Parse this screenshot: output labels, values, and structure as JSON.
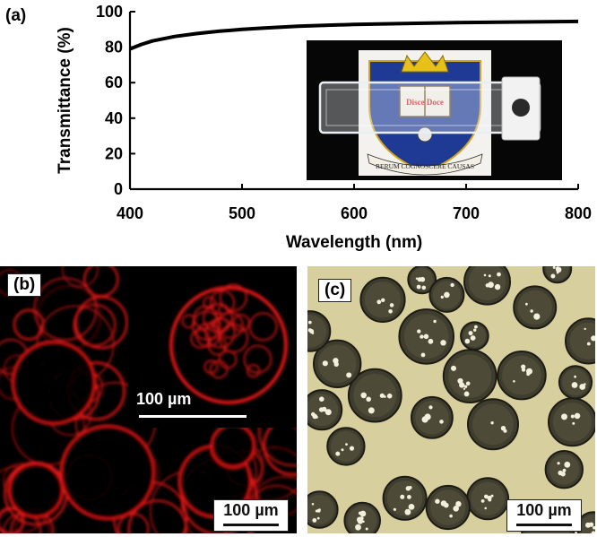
{
  "panels": {
    "a": {
      "label": "(a)"
    },
    "b": {
      "label": "(b)",
      "scale_bar": "100 µm",
      "inset_scale_bar": "100 µm"
    },
    "c": {
      "label": "(c)",
      "scale_bar": "100 µm"
    }
  },
  "photo": {
    "crest_text_top": "Disce Doce",
    "crest_ribbon": "RERUM COGNOSCERE CAUSAS"
  },
  "chart_data": {
    "type": "line",
    "title": "",
    "xlabel": "Wavelength (nm)",
    "ylabel": "Transmittance (%)",
    "xlim": [
      400,
      800
    ],
    "ylim": [
      0,
      100
    ],
    "x_ticks": [
      "400",
      "500",
      "600",
      "700",
      "800"
    ],
    "y_ticks": [
      "0",
      "20",
      "40",
      "60",
      "80",
      "100"
    ],
    "grid": false,
    "series": [
      {
        "x": [
          400,
          410,
          420,
          440,
          460,
          480,
          500,
          520,
          550,
          580,
          600,
          650,
          700,
          750,
          800
        ],
        "y": [
          79,
          81.5,
          83.5,
          86,
          87.7,
          89,
          90,
          90.8,
          91.8,
          92.4,
          92.8,
          93.4,
          93.9,
          94.2,
          94.5
        ],
        "color": "#000000"
      }
    ]
  },
  "colors": {
    "fluorescence": "#e01818",
    "micro_background": "#d8cf9e",
    "droplet": "#3e3d2e"
  }
}
